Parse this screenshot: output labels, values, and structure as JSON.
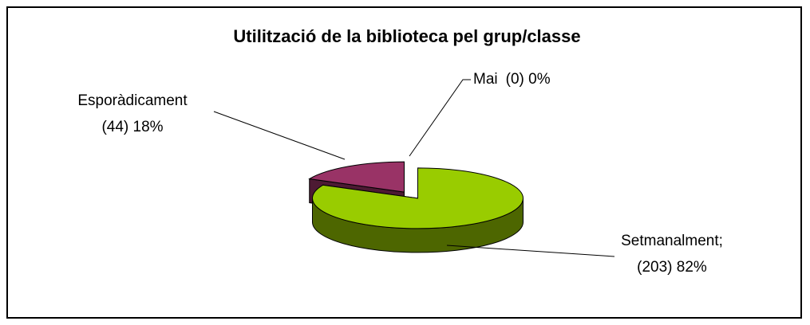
{
  "chart_data": {
    "type": "pie3d",
    "title": "Utilització de la biblioteca pel grup/classe",
    "categories": [
      "Setmanalment;",
      "Esporàdicament",
      "Mai"
    ],
    "values": [
      203,
      44,
      0
    ],
    "value_labels": [
      "(203) 82%",
      "(44) 18%",
      "(0) 0%"
    ],
    "colors": [
      "#99cc00",
      "#993366",
      "#ffffff"
    ]
  }
}
